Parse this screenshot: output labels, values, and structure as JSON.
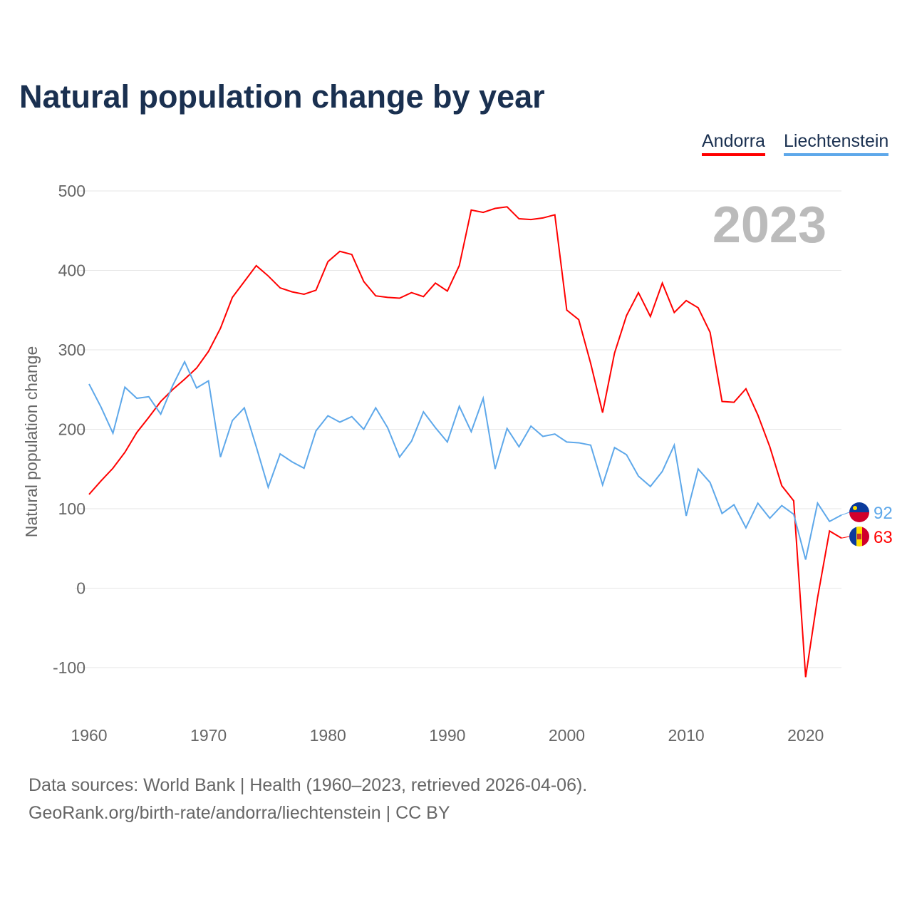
{
  "title": "Natural population change by year",
  "footer": {
    "line1": "Data sources: World Bank | Health (1960–2023, retrieved 2026-04-06).",
    "line2": "GeoRank.org/birth-rate/andorra/liechtenstein | CC BY"
  },
  "chart_data": {
    "type": "line",
    "title": "Natural population change by year",
    "xlabel": "",
    "ylabel": "Natural population change",
    "year_label": "2023",
    "xlim": [
      1960,
      2023
    ],
    "ylim": [
      -100,
      500
    ],
    "x_ticks": [
      "1960",
      "1970",
      "1980",
      "1990",
      "2000",
      "2010",
      "2020"
    ],
    "y_ticks": [
      "-100",
      "0",
      "100",
      "200",
      "300",
      "400",
      "500"
    ],
    "grid": true,
    "legend_position": "top-right",
    "series": [
      {
        "name": "Andorra",
        "color": "#ff0000",
        "end_label": "63",
        "values": [
          118,
          135,
          151,
          171,
          196,
          215,
          235,
          250,
          263,
          277,
          298,
          327,
          366,
          386,
          406,
          393,
          378,
          373,
          370,
          375,
          411,
          424,
          420,
          386,
          368,
          366,
          365,
          372,
          367,
          384,
          374,
          406,
          476,
          473,
          478,
          480,
          465,
          464,
          466,
          470,
          350,
          338,
          283,
          221,
          296,
          343,
          372,
          342,
          384,
          347,
          362,
          353,
          322,
          235,
          234,
          251,
          218,
          178,
          129,
          110,
          -112,
          -12,
          72,
          63
        ]
      },
      {
        "name": "Liechtenstein",
        "color": "#5ea8ea",
        "end_label": "92",
        "values": [
          257,
          228,
          195,
          253,
          239,
          241,
          219,
          255,
          285,
          252,
          261,
          165,
          211,
          227,
          178,
          127,
          169,
          159,
          151,
          198,
          217,
          209,
          216,
          200,
          227,
          202,
          165,
          185,
          222,
          202,
          184,
          229,
          197,
          239,
          150,
          201,
          178,
          204,
          191,
          194,
          184,
          183,
          180,
          130,
          177,
          168,
          141,
          128,
          147,
          180,
          91,
          150,
          133,
          94,
          105,
          76,
          107,
          88,
          104,
          93,
          36,
          107,
          84,
          92
        ]
      }
    ]
  }
}
